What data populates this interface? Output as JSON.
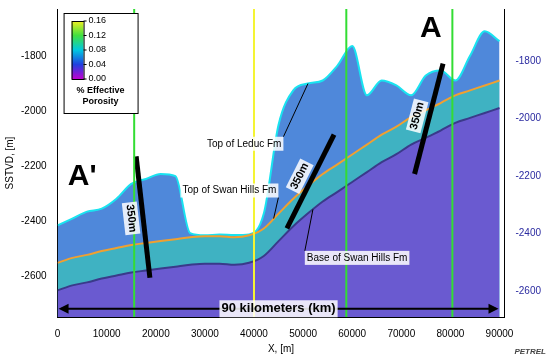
{
  "chart_data": {
    "type": "line",
    "x_label": "X, [m]",
    "y_label": "SSTVD, [m]",
    "x": [
      0,
      3000,
      6000,
      9000,
      12000,
      15000,
      18000,
      21000,
      24000,
      27000,
      30000,
      33000,
      36000,
      39000,
      42000,
      45000,
      48000,
      51000,
      54000,
      57000,
      60000,
      63000,
      66000,
      69000,
      72000,
      75000,
      78000,
      81000,
      84000,
      87000,
      90000
    ],
    "series": [
      {
        "name": "Top of Leduc Fm",
        "color": "#19e3f0",
        "values": [
          -2417,
          -2392,
          -2367,
          -2356,
          -2320,
          -2266,
          -2248,
          -2230,
          -2238,
          -2445,
          -2453,
          -2450,
          -2452,
          -2450,
          -2374,
          -2051,
          -1926,
          -1901,
          -1890,
          -1836,
          -1765,
          -1944,
          -1890,
          -1908,
          -1944,
          -1872,
          -1854,
          -1890,
          -1800,
          -1711,
          -1747
        ],
        "label_at": [
          38000,
          -2120
        ],
        "label_points_to": [
          51000,
          -1901
        ]
      },
      {
        "name": "Top of Swan Hills Fm",
        "color": "#f0a030",
        "values": [
          -2553,
          -2535,
          -2524,
          -2510,
          -2499,
          -2488,
          -2481,
          -2474,
          -2467,
          -2460,
          -2456,
          -2456,
          -2460,
          -2453,
          -2428,
          -2374,
          -2320,
          -2273,
          -2230,
          -2195,
          -2159,
          -2123,
          -2087,
          -2058,
          -2023,
          -1998,
          -1972,
          -1944,
          -1926,
          -1908,
          -1890
        ],
        "label_at": [
          35000,
          -2290
        ],
        "label_points_to": [
          44000,
          -2392
        ]
      },
      {
        "name": "Base of Swan Hills Fm",
        "color": "#3a3a8a",
        "values": [
          -2653,
          -2635,
          -2624,
          -2610,
          -2599,
          -2588,
          -2581,
          -2574,
          -2567,
          -2560,
          -2556,
          -2556,
          -2560,
          -2553,
          -2528,
          -2474,
          -2420,
          -2373,
          -2330,
          -2295,
          -2259,
          -2223,
          -2187,
          -2158,
          -2123,
          -2098,
          -2072,
          -2044,
          -2026,
          -2008,
          -1990
        ],
        "label_at": [
          61000,
          -2535
        ],
        "label_points_to": [
          52000,
          -2359
        ]
      }
    ],
    "xlim": [
      0,
      91000
    ],
    "xticks": [
      0,
      10000,
      20000,
      30000,
      40000,
      50000,
      60000,
      70000,
      80000,
      90000
    ],
    "ylim": [
      -2750,
      -1630
    ],
    "yticks": [
      -2600,
      -2400,
      -2200,
      -2000,
      -1800
    ],
    "y2lim": [
      -2690,
      -1620
    ],
    "y2ticks": [
      -2600,
      -2400,
      -2200,
      -2000,
      -1800
    ],
    "grid": false,
    "wells": [
      {
        "x": 15600,
        "color": "#33dd33"
      },
      {
        "x": 40000,
        "color": "#f4f433"
      },
      {
        "x": 58800,
        "color": "#33dd33"
      },
      {
        "x": 80400,
        "color": "#33dd33"
      }
    ],
    "thickness_bars": [
      {
        "text": "350m",
        "x": [
          16000,
          18800
        ],
        "y": [
          -2166,
          -2607
        ]
      },
      {
        "text": "350m",
        "x": [
          56300,
          46700
        ],
        "y": [
          -2087,
          -2428
        ]
      },
      {
        "text": "350m",
        "x": [
          78500,
          72700
        ],
        "y": [
          -1829,
          -2230
        ]
      }
    ],
    "section_ends": [
      {
        "text": "A'",
        "x": 5000,
        "y": -2240
      },
      {
        "text": "A",
        "x": 76000,
        "y": -1700
      }
    ],
    "scale_bar": {
      "text": "90 kilometers (km)",
      "x": [
        0,
        90000
      ],
      "y": -2720
    },
    "colorbar": {
      "title": "% Effective Porosity",
      "range": [
        0,
        0.16
      ],
      "ticks": [
        {
          "value": 0,
          "label": "0.00"
        },
        0.04,
        0.08,
        0.12,
        0.16
      ]
    },
    "logo": "PETREL"
  }
}
